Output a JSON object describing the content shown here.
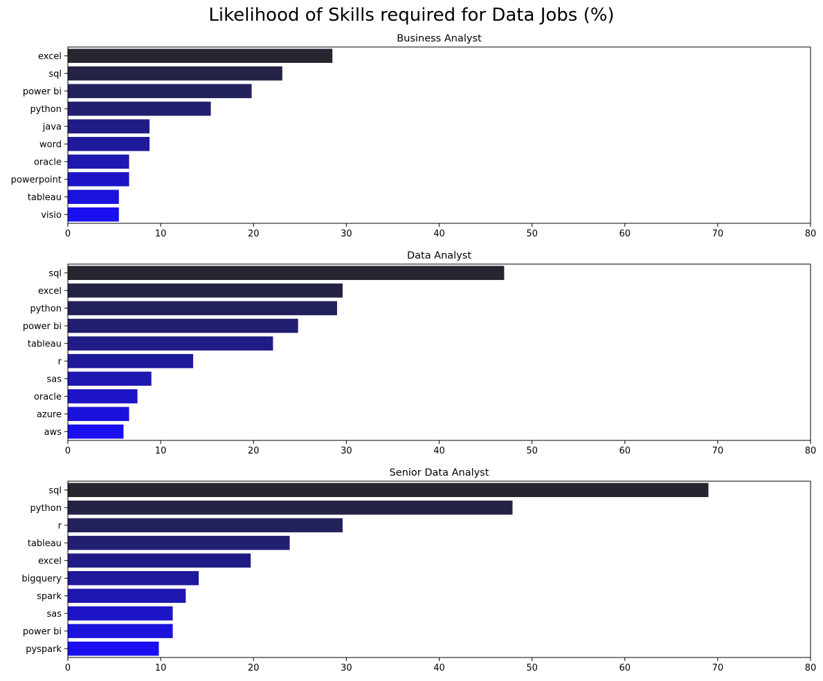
{
  "figure": {
    "suptitle": "Likelihood of Skills required for Data Jobs (%)"
  },
  "colors": {
    "palette_dark": "#262630",
    "palette_bright": "#1a0ff0",
    "axis": "#000000",
    "background": "#ffffff"
  },
  "chart_data": [
    {
      "type": "bar",
      "orientation": "horizontal",
      "title": "Business Analyst",
      "xlabel": "",
      "ylabel": "",
      "xlim": [
        0,
        80
      ],
      "xticks": [
        0,
        10,
        20,
        30,
        40,
        50,
        60,
        70,
        80
      ],
      "grid": false,
      "categories": [
        "excel",
        "sql",
        "power bi",
        "python",
        "java",
        "word",
        "oracle",
        "powerpoint",
        "tableau",
        "visio"
      ],
      "values": [
        28.5,
        23.1,
        19.8,
        15.4,
        8.8,
        8.8,
        6.6,
        6.6,
        5.5,
        5.5
      ]
    },
    {
      "type": "bar",
      "orientation": "horizontal",
      "title": "Data Analyst",
      "xlabel": "",
      "ylabel": "",
      "xlim": [
        0,
        80
      ],
      "xticks": [
        0,
        10,
        20,
        30,
        40,
        50,
        60,
        70,
        80
      ],
      "grid": false,
      "categories": [
        "sql",
        "excel",
        "python",
        "power bi",
        "tableau",
        "r",
        "sas",
        "oracle",
        "azure",
        "aws"
      ],
      "values": [
        47.0,
        29.6,
        29.0,
        24.8,
        22.1,
        13.5,
        9.0,
        7.5,
        6.6,
        6.0
      ]
    },
    {
      "type": "bar",
      "orientation": "horizontal",
      "title": "Senior Data Analyst",
      "xlabel": "",
      "ylabel": "",
      "xlim": [
        0,
        80
      ],
      "xticks": [
        0,
        10,
        20,
        30,
        40,
        50,
        60,
        70,
        80
      ],
      "grid": false,
      "categories": [
        "sql",
        "python",
        "r",
        "tableau",
        "excel",
        "bigquery",
        "spark",
        "sas",
        "power bi",
        "pyspark"
      ],
      "values": [
        69.0,
        47.9,
        29.6,
        23.9,
        19.7,
        14.1,
        12.7,
        11.3,
        11.3,
        9.8
      ]
    }
  ]
}
